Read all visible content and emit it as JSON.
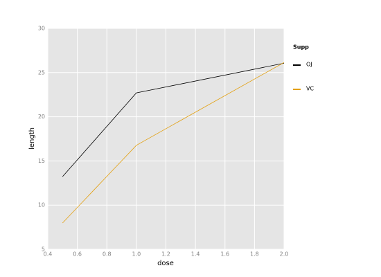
{
  "chart_data": {
    "type": "line",
    "x_label": "dose",
    "y_label": "length",
    "x": [
      0.5,
      1.0,
      2.0
    ],
    "series": [
      {
        "name": "OJ",
        "color": "#000000",
        "values": [
          13.23,
          22.7,
          26.06
        ]
      },
      {
        "name": "VC",
        "color": "#e3a010",
        "values": [
          7.98,
          16.77,
          26.14
        ]
      }
    ],
    "legend_title": "Supp",
    "legend_position": "right",
    "xlim": [
      0.4,
      2.0
    ],
    "ylim": [
      5,
      30
    ],
    "xticks": [
      0.4,
      0.6,
      0.8,
      {
        "value": 1,
        "label": "1.0"
      },
      1.2,
      1.4,
      1.6,
      1.8,
      {
        "value": 2,
        "label": "2.0"
      }
    ],
    "yticks": [
      5,
      10,
      15,
      20,
      25,
      30
    ],
    "grid": true
  }
}
